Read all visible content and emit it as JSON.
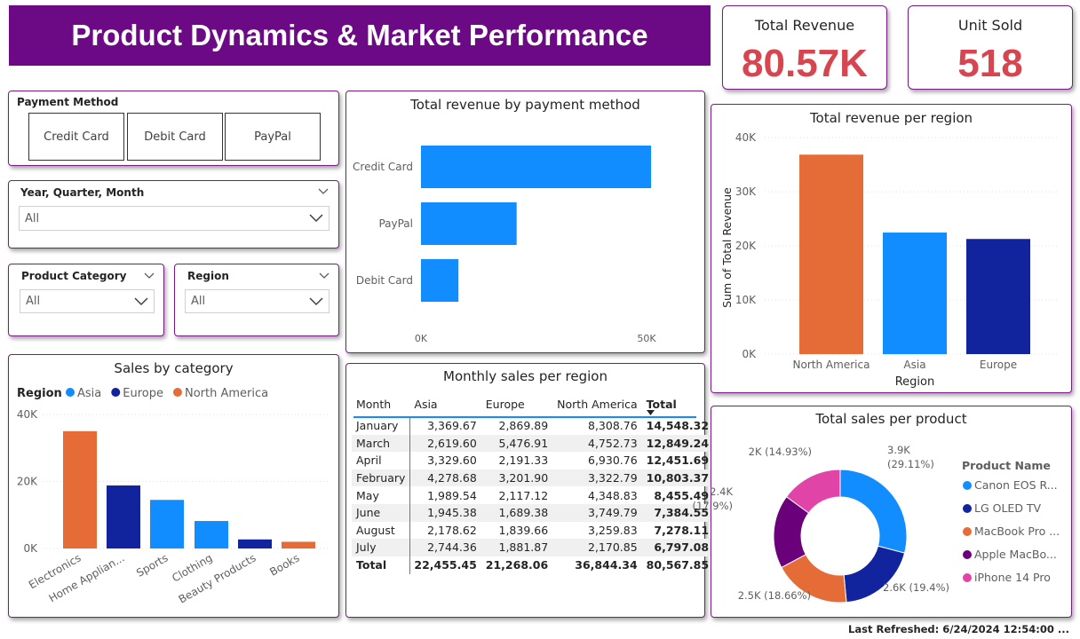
{
  "header": {
    "title": "Product Dynamics & Market Performance"
  },
  "kpis": {
    "revenue": {
      "label": "Total Revenue",
      "value": "80.57K"
    },
    "units": {
      "label": "Unit Sold",
      "value": "518"
    }
  },
  "slicers": {
    "payment": {
      "title": "Payment Method",
      "options": [
        "Credit Card",
        "Debit Card",
        "PayPal"
      ]
    },
    "date": {
      "title": "Year, Quarter, Month",
      "value": "All"
    },
    "category": {
      "title": "Product Category",
      "value": "All"
    },
    "region": {
      "title": "Region",
      "value": "All"
    }
  },
  "footer": {
    "refreshed": "Last Refreshed: 6/24/2024 12:54:00 ..."
  },
  "colors": {
    "asia": "#118dff",
    "europe": "#12239e",
    "north_america": "#e66c37",
    "apple": "#6b007b",
    "iphone": "#e044a7",
    "accent": "#6c0a86",
    "kpi": "#d64550"
  },
  "chart_data": [
    {
      "id": "payment",
      "type": "bar",
      "orientation": "horizontal",
      "title": "Total revenue by payment method",
      "categories": [
        "Credit Card",
        "PayPal",
        "Debit Card"
      ],
      "values": [
        51000,
        21200,
        8300
      ],
      "xticks": [
        "0K",
        "50K"
      ],
      "xlim": [
        0,
        50000
      ],
      "color": "#118dff"
    },
    {
      "id": "region",
      "type": "bar",
      "title": "Total revenue per region",
      "xlabel": "Region",
      "ylabel": "Sum of Total Revenue",
      "categories": [
        "North America",
        "Asia",
        "Europe"
      ],
      "values": [
        36844.34,
        22455.45,
        21268.06
      ],
      "colors": [
        "#e66c37",
        "#118dff",
        "#12239e"
      ],
      "yticks": [
        "0K",
        "10K",
        "20K",
        "30K",
        "40K"
      ],
      "ylim": [
        0,
        40000
      ],
      "grid": true
    },
    {
      "id": "category",
      "type": "bar",
      "title": "Sales by category",
      "legend_title": "Region",
      "legend": [
        {
          "name": "Asia",
          "color": "#118dff"
        },
        {
          "name": "Europe",
          "color": "#12239e"
        },
        {
          "name": "North America",
          "color": "#e66c37"
        }
      ],
      "categories": [
        "Electronics",
        "Home Applian...",
        "Sports",
        "Clothing",
        "Beauty Products",
        "Books"
      ],
      "values": [
        35000,
        18800,
        14500,
        8200,
        2700,
        2000
      ],
      "colors": [
        "#e66c37",
        "#12239e",
        "#118dff",
        "#118dff",
        "#12239e",
        "#e66c37"
      ],
      "yticks": [
        "0K",
        "20K",
        "40K"
      ],
      "ylim": [
        0,
        40000
      ],
      "grid": true
    },
    {
      "id": "product",
      "type": "pie",
      "donut": true,
      "title": "Total sales per product",
      "legend_title": "Product Name",
      "labels": [
        "Canon EOS R...",
        "LG OLED TV",
        "MacBook Pro ...",
        "Apple MacBo...",
        "iPhone 14 Pro"
      ],
      "percents": [
        29.11,
        19.4,
        18.66,
        17.9,
        14.93
      ],
      "value_labels": [
        "3.9K",
        "2.6K",
        "2.5K",
        "2.4K",
        "2K"
      ],
      "percent_labels": [
        "(29.11%)",
        "(19.4%)",
        "(18.66%)",
        "(17.9%)",
        "(14.93%)"
      ],
      "colors": [
        "#118dff",
        "#12239e",
        "#e66c37",
        "#6b007b",
        "#e044a7"
      ]
    },
    {
      "id": "monthly",
      "type": "table",
      "title": "Monthly sales per region",
      "columns": [
        "Month",
        "Asia",
        "Europe",
        "North America",
        "Total"
      ],
      "rows": [
        [
          "January",
          "3,369.67",
          "2,869.89",
          "8,308.76",
          "14,548.32"
        ],
        [
          "March",
          "2,619.60",
          "5,476.91",
          "4,752.73",
          "12,849.24"
        ],
        [
          "April",
          "3,329.60",
          "2,191.33",
          "6,930.76",
          "12,451.69"
        ],
        [
          "February",
          "4,278.68",
          "3,201.90",
          "3,322.79",
          "10,803.37"
        ],
        [
          "May",
          "1,989.54",
          "2,117.12",
          "4,348.83",
          "8,455.49"
        ],
        [
          "June",
          "1,945.38",
          "1,689.38",
          "3,749.79",
          "7,384.55"
        ],
        [
          "August",
          "2,178.62",
          "1,839.66",
          "3,259.83",
          "7,278.11"
        ],
        [
          "July",
          "2,744.36",
          "1,881.87",
          "2,170.85",
          "6,797.08"
        ]
      ],
      "total": [
        "Total",
        "22,455.45",
        "21,268.06",
        "36,844.34",
        "80,567.85"
      ]
    }
  ]
}
